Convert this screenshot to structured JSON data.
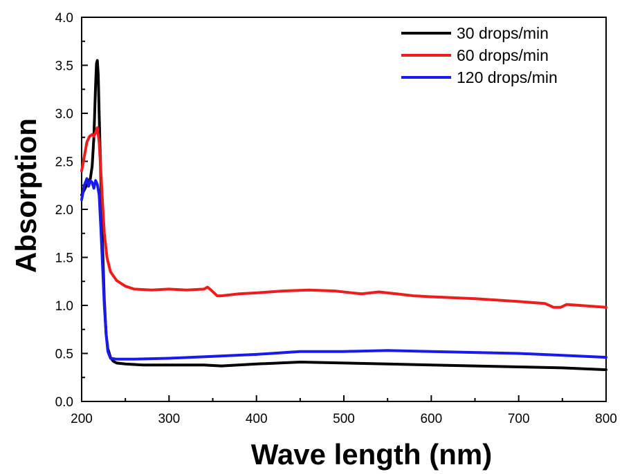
{
  "chart_data": {
    "type": "line",
    "xlabel": "Wave length (nm)",
    "ylabel": "Absorption",
    "xlim": [
      200,
      800
    ],
    "ylim": [
      0.0,
      4.0
    ],
    "xticks": [
      200,
      300,
      400,
      500,
      600,
      700,
      800
    ],
    "yticks": [
      0.0,
      0.5,
      1.0,
      1.5,
      2.0,
      2.5,
      3.0,
      3.5,
      4.0
    ],
    "xtick_labels": [
      "200",
      "300",
      "400",
      "500",
      "600",
      "700",
      "800"
    ],
    "ytick_labels": [
      "0.0",
      "0.5",
      "1.0",
      "1.5",
      "2.0",
      "2.5",
      "3.0",
      "3.5",
      "4.0"
    ],
    "grid": false,
    "legend_position": "top-right",
    "series": [
      {
        "name": "30 drops/min",
        "color": "#000000",
        "points": [
          [
            200,
            2.15
          ],
          [
            204,
            2.22
          ],
          [
            207,
            2.28
          ],
          [
            210,
            2.32
          ],
          [
            212,
            2.45
          ],
          [
            214,
            2.75
          ],
          [
            216,
            3.3
          ],
          [
            217,
            3.52
          ],
          [
            218,
            3.55
          ],
          [
            219,
            3.4
          ],
          [
            220,
            3.0
          ],
          [
            222,
            2.3
          ],
          [
            224,
            1.6
          ],
          [
            226,
            1.05
          ],
          [
            228,
            0.7
          ],
          [
            230,
            0.55
          ],
          [
            233,
            0.46
          ],
          [
            236,
            0.42
          ],
          [
            240,
            0.4
          ],
          [
            250,
            0.39
          ],
          [
            270,
            0.38
          ],
          [
            300,
            0.38
          ],
          [
            340,
            0.38
          ],
          [
            360,
            0.37
          ],
          [
            400,
            0.39
          ],
          [
            450,
            0.41
          ],
          [
            500,
            0.4
          ],
          [
            550,
            0.39
          ],
          [
            600,
            0.38
          ],
          [
            650,
            0.37
          ],
          [
            700,
            0.36
          ],
          [
            750,
            0.35
          ],
          [
            800,
            0.33
          ]
        ]
      },
      {
        "name": "60 drops/min",
        "color": "#ee1c1c",
        "points": [
          [
            200,
            2.4
          ],
          [
            203,
            2.55
          ],
          [
            206,
            2.7
          ],
          [
            209,
            2.76
          ],
          [
            212,
            2.78
          ],
          [
            214,
            2.76
          ],
          [
            216,
            2.8
          ],
          [
            218,
            2.85
          ],
          [
            220,
            2.7
          ],
          [
            222,
            2.4
          ],
          [
            224,
            2.05
          ],
          [
            226,
            1.75
          ],
          [
            229,
            1.5
          ],
          [
            233,
            1.35
          ],
          [
            240,
            1.26
          ],
          [
            250,
            1.2
          ],
          [
            260,
            1.17
          ],
          [
            280,
            1.16
          ],
          [
            300,
            1.17
          ],
          [
            320,
            1.16
          ],
          [
            340,
            1.17
          ],
          [
            344,
            1.19
          ],
          [
            348,
            1.16
          ],
          [
            355,
            1.1
          ],
          [
            360,
            1.1
          ],
          [
            380,
            1.12
          ],
          [
            400,
            1.13
          ],
          [
            430,
            1.15
          ],
          [
            460,
            1.16
          ],
          [
            490,
            1.15
          ],
          [
            520,
            1.12
          ],
          [
            540,
            1.14
          ],
          [
            560,
            1.12
          ],
          [
            580,
            1.1
          ],
          [
            600,
            1.09
          ],
          [
            650,
            1.07
          ],
          [
            700,
            1.04
          ],
          [
            730,
            1.02
          ],
          [
            740,
            0.98
          ],
          [
            748,
            0.98
          ],
          [
            755,
            1.01
          ],
          [
            770,
            1.0
          ],
          [
            800,
            0.98
          ]
        ]
      },
      {
        "name": "120 drops/min",
        "color": "#1a1aee",
        "points": [
          [
            200,
            2.1
          ],
          [
            203,
            2.25
          ],
          [
            206,
            2.32
          ],
          [
            208,
            2.24
          ],
          [
            210,
            2.3
          ],
          [
            212,
            2.28
          ],
          [
            214,
            2.22
          ],
          [
            216,
            2.3
          ],
          [
            218,
            2.26
          ],
          [
            220,
            2.15
          ],
          [
            222,
            1.8
          ],
          [
            224,
            1.4
          ],
          [
            226,
            1.0
          ],
          [
            228,
            0.7
          ],
          [
            230,
            0.52
          ],
          [
            233,
            0.45
          ],
          [
            240,
            0.44
          ],
          [
            260,
            0.44
          ],
          [
            300,
            0.45
          ],
          [
            350,
            0.47
          ],
          [
            400,
            0.49
          ],
          [
            450,
            0.52
          ],
          [
            500,
            0.52
          ],
          [
            550,
            0.53
          ],
          [
            600,
            0.52
          ],
          [
            650,
            0.51
          ],
          [
            700,
            0.5
          ],
          [
            750,
            0.48
          ],
          [
            800,
            0.46
          ]
        ]
      }
    ]
  }
}
